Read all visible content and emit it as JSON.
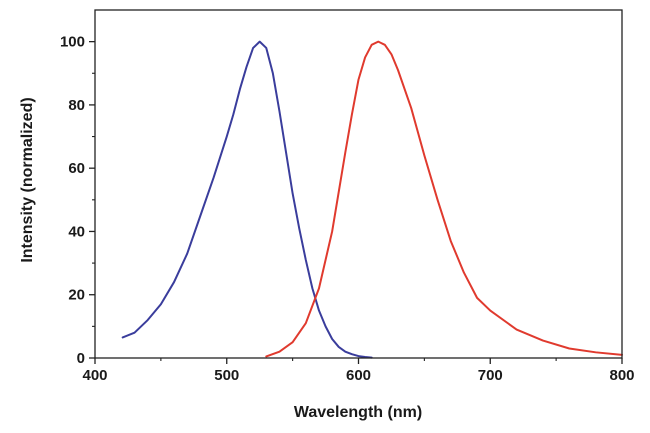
{
  "chart_data": {
    "type": "line",
    "title": "",
    "xlabel": "Wavelength (nm)",
    "ylabel": "Intensity (normalized)",
    "xlim": [
      400,
      800
    ],
    "ylim": [
      0,
      110
    ],
    "xticks": [
      400,
      500,
      600,
      700,
      800
    ],
    "yticks": [
      0,
      20,
      40,
      60,
      80,
      100
    ],
    "xtick_labels": [
      "400",
      "500",
      "600",
      "700",
      "800"
    ],
    "ytick_labels": [
      "0",
      "20",
      "40",
      "60",
      "80",
      "100"
    ],
    "minor_ticks": true,
    "grid": false,
    "legend": "none",
    "series": [
      {
        "color": "#3a3d9c",
        "x": [
          421,
          430,
          440,
          450,
          460,
          470,
          480,
          490,
          500,
          505,
          510,
          515,
          520,
          525,
          530,
          535,
          540,
          545,
          550,
          555,
          560,
          565,
          570,
          575,
          580,
          585,
          590,
          595,
          600,
          605,
          610
        ],
        "y": [
          6.5,
          8,
          12,
          17,
          24,
          33,
          45,
          57,
          70,
          77,
          85,
          92,
          98,
          100,
          98,
          90,
          78,
          65,
          52,
          41,
          31,
          22,
          15,
          10,
          6,
          3.5,
          2,
          1.2,
          0.6,
          0.3,
          0.1
        ]
      },
      {
        "color": "#e03a2e",
        "x": [
          530,
          540,
          550,
          560,
          570,
          580,
          590,
          595,
          600,
          605,
          610,
          615,
          620,
          625,
          630,
          640,
          650,
          660,
          670,
          680,
          690,
          700,
          720,
          740,
          760,
          780,
          800
        ],
        "y": [
          0.5,
          2,
          5,
          11,
          22,
          40,
          65,
          77,
          88,
          95,
          99,
          100,
          99,
          96,
          91,
          79,
          64,
          50,
          37,
          27,
          19,
          15,
          9,
          5.5,
          3,
          1.8,
          1
        ]
      }
    ]
  }
}
